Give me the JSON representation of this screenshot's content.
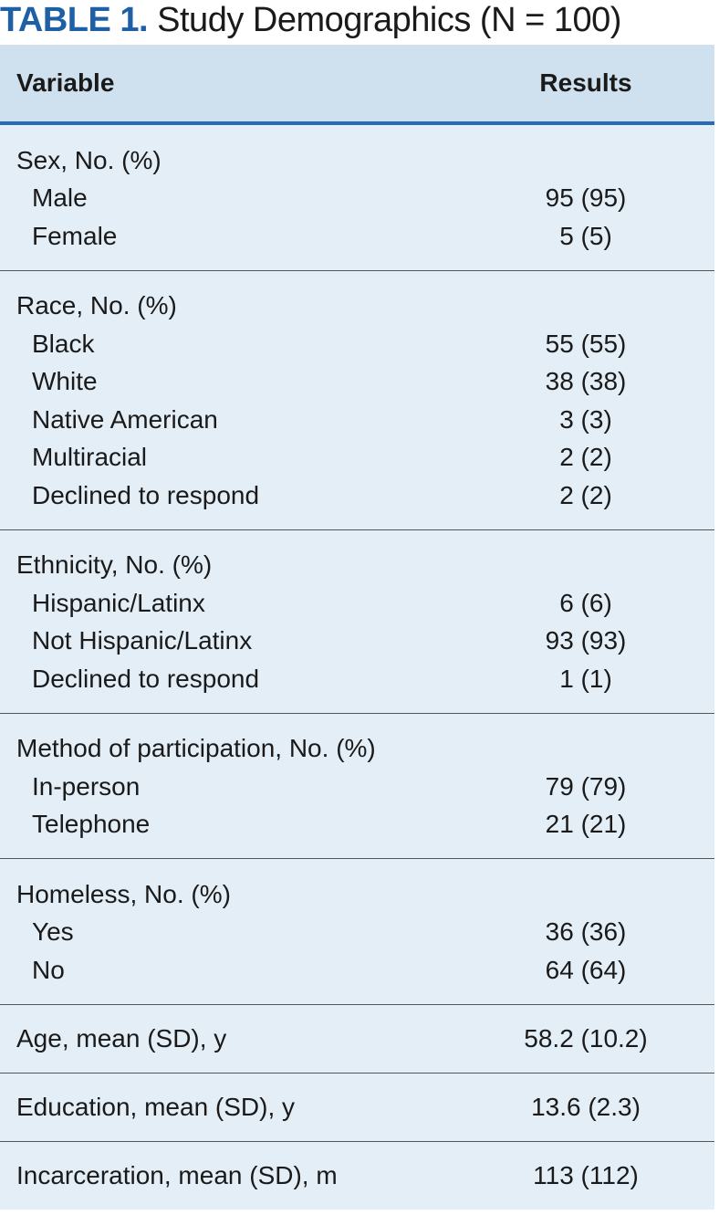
{
  "title": {
    "label": "TABLE 1.",
    "text": " Study Demographics (N = 100)"
  },
  "header": {
    "variable": "Variable",
    "results": "Results"
  },
  "groups": [
    {
      "heading": "Sex, No. (%)",
      "rows": [
        {
          "label": "Male",
          "value": "95 (95)"
        },
        {
          "label": "Female",
          "value": "5 (5)"
        }
      ]
    },
    {
      "heading": "Race, No. (%)",
      "rows": [
        {
          "label": "Black",
          "value": "55 (55)"
        },
        {
          "label": "White",
          "value": "38 (38)"
        },
        {
          "label": "Native American",
          "value": "3 (3)"
        },
        {
          "label": "Multiracial",
          "value": "2 (2)"
        },
        {
          "label": "Declined to respond",
          "value": "2 (2)"
        }
      ]
    },
    {
      "heading": "Ethnicity, No. (%)",
      "rows": [
        {
          "label": "Hispanic/Latinx",
          "value": "6 (6)"
        },
        {
          "label": "Not Hispanic/Latinx",
          "value": "93 (93)"
        },
        {
          "label": "Declined to respond",
          "value": "1 (1)"
        }
      ]
    },
    {
      "heading": "Method of participation, No. (%)",
      "rows": [
        {
          "label": "In-person",
          "value": "79 (79)"
        },
        {
          "label": "Telephone",
          "value": "21 (21)"
        }
      ]
    },
    {
      "heading": "Homeless, No. (%)",
      "rows": [
        {
          "label": "Yes",
          "value": "36 (36)"
        },
        {
          "label": "No",
          "value": "64 (64)"
        }
      ]
    }
  ],
  "singles": [
    {
      "label": "Age, mean (SD), y",
      "value": "58.2 (10.2)"
    },
    {
      "label": "Education, mean (SD), y",
      "value": "13.6 (2.3)"
    },
    {
      "label": "Incarceration, mean (SD), m",
      "value": "113 (112)"
    }
  ]
}
